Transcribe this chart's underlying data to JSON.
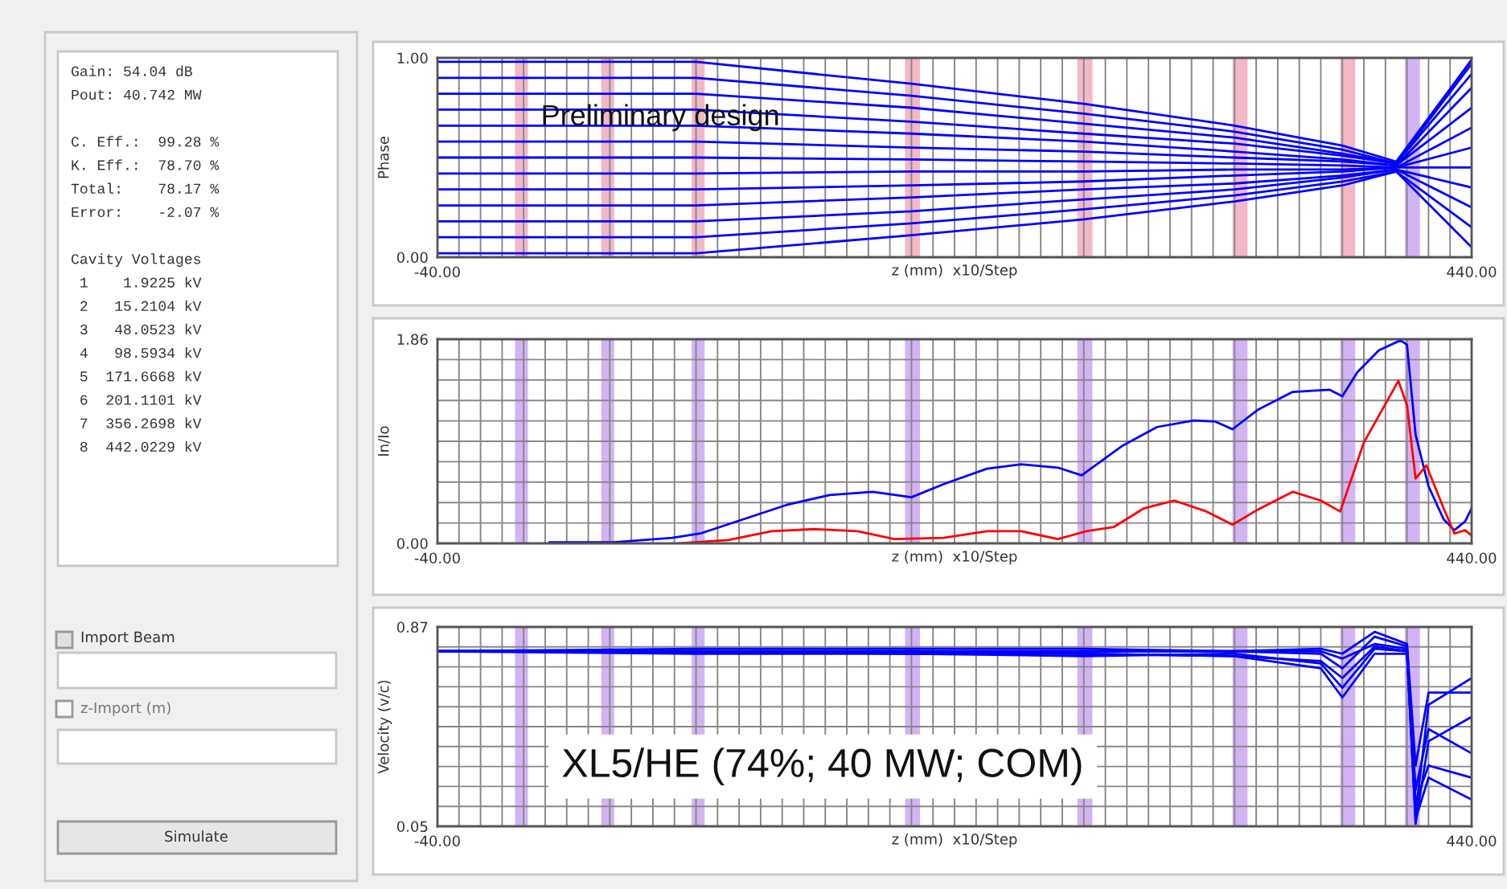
{
  "chart_data": [
    {
      "type": "other",
      "annotations": [
        "Gain: 54.04 dB",
        "Pout: 40.742 MW",
        "C. Eff.:  99.28 %",
        "K. Eff.:  78.70 %",
        "Total:    78.17 %",
        "Error:    -2.07 %",
        "Cavity Voltages",
        " 1    1.9225 kV",
        " 2   15.2104 kV",
        " 3   48.0523 kV",
        " 4   98.5934 kV",
        " 5  171.6668 kV",
        " 6  201.1101 kV",
        " 7  356.2698 kV",
        " 8  442.0229 kV",
        "Import Beam",
        "z-Import (m)",
        "Simulate"
      ]
    },
    {
      "type": "line",
      "ylabel": "Phase",
      "xlabel": "z (mm)  x10/Step",
      "annotations": [
        "Preliminary design"
      ],
      "grid": "x",
      "xlim": [
        -40,
        440
      ],
      "ylim": [
        0,
        1
      ],
      "xticks": [
        {
          "value": -40,
          "label": "-40.00"
        },
        {
          "value": -30,
          "label": null
        },
        {
          "value": -20,
          "label": null
        },
        {
          "value": -10,
          "label": null
        },
        {
          "value": 0,
          "label": null
        },
        {
          "value": 10,
          "label": null
        },
        {
          "value": 20,
          "label": null
        },
        {
          "value": 30,
          "label": null
        },
        {
          "value": 40,
          "label": null
        },
        {
          "value": 50,
          "label": null
        },
        {
          "value": 60,
          "label": null
        },
        {
          "value": 70,
          "label": null
        },
        {
          "value": 80,
          "label": null
        },
        {
          "value": 90,
          "label": null
        },
        {
          "value": 100,
          "label": null
        },
        {
          "value": 110,
          "label": null
        },
        {
          "value": 120,
          "label": null
        },
        {
          "value": 130,
          "label": null
        },
        {
          "value": 140,
          "label": null
        },
        {
          "value": 150,
          "label": null
        },
        {
          "value": 160,
          "label": null
        },
        {
          "value": 170,
          "label": null
        },
        {
          "value": 180,
          "label": null
        },
        {
          "value": 190,
          "label": null
        },
        {
          "value": 200,
          "label": null
        },
        {
          "value": 210,
          "label": null
        },
        {
          "value": 220,
          "label": null
        },
        {
          "value": 230,
          "label": null
        },
        {
          "value": 240,
          "label": null
        },
        {
          "value": 250,
          "label": null
        },
        {
          "value": 260,
          "label": null
        },
        {
          "value": 270,
          "label": null
        },
        {
          "value": 280,
          "label": null
        },
        {
          "value": 290,
          "label": null
        },
        {
          "value": 300,
          "label": null
        },
        {
          "value": 310,
          "label": null
        },
        {
          "value": 320,
          "label": null
        },
        {
          "value": 330,
          "label": null
        },
        {
          "value": 340,
          "label": null
        },
        {
          "value": 350,
          "label": null
        },
        {
          "value": 360,
          "label": null
        },
        {
          "value": 370,
          "label": null
        },
        {
          "value": 380,
          "label": null
        },
        {
          "value": 390,
          "label": null
        },
        {
          "value": 400,
          "label": null
        },
        {
          "value": 410,
          "label": null
        },
        {
          "value": 420,
          "label": null
        },
        {
          "value": 430,
          "label": null
        },
        {
          "value": 440,
          "label": "440.00"
        }
      ],
      "yticks": [
        {
          "value": 0,
          "label": "0.00"
        },
        {
          "value": 1,
          "label": "1.00"
        }
      ],
      "bands": [
        {
          "axis": "x",
          "from": -4,
          "to": 2,
          "color": "#f2b8c6"
        },
        {
          "axis": "x",
          "from": 36,
          "to": 42,
          "color": "#f2b8c6"
        },
        {
          "axis": "x",
          "from": 78,
          "to": 84,
          "color": "#f2b8c6"
        },
        {
          "axis": "x",
          "from": 177,
          "to": 184,
          "color": "#f2b8c6"
        },
        {
          "axis": "x",
          "from": 257,
          "to": 264,
          "color": "#f2b8c6"
        },
        {
          "axis": "x",
          "from": 329,
          "to": 336,
          "color": "#f2b8c6"
        },
        {
          "axis": "x",
          "from": 379,
          "to": 386,
          "color": "#f2b8c6"
        },
        {
          "axis": "x",
          "from": 409,
          "to": 416,
          "color": "#d2b4f5"
        }
      ],
      "x": [
        -40,
        80,
        180,
        260,
        330,
        380,
        405,
        440
      ],
      "series": [
        {
          "color": "#0000ff",
          "values": [
            0.02,
            0.02,
            0.11,
            0.19,
            0.28,
            0.36,
            0.43,
            0.05
          ]
        },
        {
          "color": "#0000ff",
          "values": [
            0.1,
            0.1,
            0.17,
            0.24,
            0.31,
            0.38,
            0.43,
            0.15
          ]
        },
        {
          "color": "#0000ff",
          "values": [
            0.18,
            0.18,
            0.23,
            0.29,
            0.34,
            0.4,
            0.44,
            0.25
          ]
        },
        {
          "color": "#0000ff",
          "values": [
            0.26,
            0.26,
            0.3,
            0.34,
            0.37,
            0.41,
            0.44,
            0.35
          ]
        },
        {
          "color": "#0000ff",
          "values": [
            0.34,
            0.34,
            0.36,
            0.38,
            0.41,
            0.43,
            0.45,
            0.45
          ]
        },
        {
          "color": "#0000ff",
          "values": [
            0.42,
            0.42,
            0.43,
            0.43,
            0.44,
            0.44,
            0.45,
            0.55
          ]
        },
        {
          "color": "#0000ff",
          "values": [
            0.5,
            0.5,
            0.49,
            0.48,
            0.47,
            0.46,
            0.45,
            0.65
          ]
        },
        {
          "color": "#0000ff",
          "values": [
            0.58,
            0.58,
            0.55,
            0.53,
            0.5,
            0.48,
            0.46,
            0.75
          ]
        },
        {
          "color": "#0000ff",
          "values": [
            0.66,
            0.66,
            0.62,
            0.58,
            0.53,
            0.49,
            0.46,
            0.85
          ]
        },
        {
          "color": "#0000ff",
          "values": [
            0.74,
            0.74,
            0.68,
            0.62,
            0.57,
            0.51,
            0.47,
            0.92
          ]
        },
        {
          "color": "#0000ff",
          "values": [
            0.82,
            0.82,
            0.75,
            0.67,
            0.6,
            0.52,
            0.47,
            0.97
          ]
        },
        {
          "color": "#0000ff",
          "values": [
            0.9,
            0.9,
            0.81,
            0.72,
            0.63,
            0.54,
            0.47,
            0.99
          ]
        },
        {
          "color": "#0000ff",
          "values": [
            0.98,
            0.98,
            0.87,
            0.77,
            0.66,
            0.56,
            0.48,
            0.99
          ]
        }
      ]
    },
    {
      "type": "line",
      "ylabel": "In/Io",
      "xlabel": "z (mm)  x10/Step",
      "grid": true,
      "xlim": [
        -40,
        440
      ],
      "ylim": [
        0,
        1.86
      ],
      "xticks": [
        {
          "value": -40,
          "label": "-40.00"
        },
        {
          "value": -30,
          "label": null
        },
        {
          "value": -20,
          "label": null
        },
        {
          "value": -10,
          "label": null
        },
        {
          "value": 0,
          "label": null
        },
        {
          "value": 10,
          "label": null
        },
        {
          "value": 20,
          "label": null
        },
        {
          "value": 30,
          "label": null
        },
        {
          "value": 40,
          "label": null
        },
        {
          "value": 50,
          "label": null
        },
        {
          "value": 60,
          "label": null
        },
        {
          "value": 70,
          "label": null
        },
        {
          "value": 80,
          "label": null
        },
        {
          "value": 90,
          "label": null
        },
        {
          "value": 100,
          "label": null
        },
        {
          "value": 110,
          "label": null
        },
        {
          "value": 120,
          "label": null
        },
        {
          "value": 130,
          "label": null
        },
        {
          "value": 140,
          "label": null
        },
        {
          "value": 150,
          "label": null
        },
        {
          "value": 160,
          "label": null
        },
        {
          "value": 170,
          "label": null
        },
        {
          "value": 180,
          "label": null
        },
        {
          "value": 190,
          "label": null
        },
        {
          "value": 200,
          "label": null
        },
        {
          "value": 210,
          "label": null
        },
        {
          "value": 220,
          "label": null
        },
        {
          "value": 230,
          "label": null
        },
        {
          "value": 240,
          "label": null
        },
        {
          "value": 250,
          "label": null
        },
        {
          "value": 260,
          "label": null
        },
        {
          "value": 270,
          "label": null
        },
        {
          "value": 280,
          "label": null
        },
        {
          "value": 290,
          "label": null
        },
        {
          "value": 300,
          "label": null
        },
        {
          "value": 310,
          "label": null
        },
        {
          "value": 320,
          "label": null
        },
        {
          "value": 330,
          "label": null
        },
        {
          "value": 340,
          "label": null
        },
        {
          "value": 350,
          "label": null
        },
        {
          "value": 360,
          "label": null
        },
        {
          "value": 370,
          "label": null
        },
        {
          "value": 380,
          "label": null
        },
        {
          "value": 390,
          "label": null
        },
        {
          "value": 400,
          "label": null
        },
        {
          "value": 410,
          "label": null
        },
        {
          "value": 420,
          "label": null
        },
        {
          "value": 430,
          "label": null
        },
        {
          "value": 440,
          "label": "440.00"
        }
      ],
      "yticks": [
        {
          "value": 0,
          "label": "0.00"
        },
        {
          "value": 0.186,
          "label": null
        },
        {
          "value": 0.372,
          "label": null
        },
        {
          "value": 0.558,
          "label": null
        },
        {
          "value": 0.744,
          "label": null
        },
        {
          "value": 0.93,
          "label": null
        },
        {
          "value": 1.116,
          "label": null
        },
        {
          "value": 1.302,
          "label": null
        },
        {
          "value": 1.488,
          "label": null
        },
        {
          "value": 1.674,
          "label": null
        },
        {
          "value": 1.86,
          "label": "1.86"
        }
      ],
      "bands": [
        {
          "axis": "x",
          "from": -4,
          "to": 2,
          "color": "#d2b4f5"
        },
        {
          "axis": "x",
          "from": 36,
          "to": 42,
          "color": "#d2b4f5"
        },
        {
          "axis": "x",
          "from": 78,
          "to": 84,
          "color": "#d2b4f5"
        },
        {
          "axis": "x",
          "from": 177,
          "to": 184,
          "color": "#d2b4f5"
        },
        {
          "axis": "x",
          "from": 257,
          "to": 264,
          "color": "#d2b4f5"
        },
        {
          "axis": "x",
          "from": 329,
          "to": 336,
          "color": "#d2b4f5"
        },
        {
          "axis": "x",
          "from": 379,
          "to": 386,
          "color": "#d2b4f5"
        },
        {
          "axis": "x",
          "from": 409,
          "to": 416,
          "color": "#d2b4f5"
        }
      ],
      "series": [
        {
          "color": "#0000ff",
          "x": [
            12,
            42,
            69,
            82,
            102,
            122,
            142,
            162,
            180,
            195,
            215,
            231,
            248,
            259,
            278,
            294,
            311,
            321,
            329,
            341,
            357,
            374,
            380,
            387,
            397,
            407,
            410,
            414,
            420,
            427,
            432,
            437,
            440
          ],
          "values": [
            0.01,
            0.01,
            0.05,
            0.09,
            0.22,
            0.35,
            0.44,
            0.47,
            0.42,
            0.54,
            0.68,
            0.72,
            0.69,
            0.62,
            0.89,
            1.06,
            1.12,
            1.11,
            1.04,
            1.22,
            1.38,
            1.4,
            1.34,
            1.56,
            1.76,
            1.85,
            1.81,
            0.99,
            0.52,
            0.22,
            0.12,
            0.2,
            0.32
          ]
        },
        {
          "color": "#ff0000",
          "x": [
            72,
            95,
            115,
            135,
            155,
            172,
            195,
            215,
            231,
            248,
            261,
            274,
            288,
            302,
            317,
            329,
            341,
            357,
            370,
            379,
            390,
            406,
            410,
            414,
            419,
            427,
            432,
            437,
            440
          ],
          "values": [
            0,
            0.03,
            0.11,
            0.13,
            0.11,
            0.04,
            0.05,
            0.11,
            0.11,
            0.04,
            0.11,
            0.15,
            0.32,
            0.39,
            0.29,
            0.17,
            0.31,
            0.47,
            0.39,
            0.29,
            0.92,
            1.48,
            1.26,
            0.59,
            0.71,
            0.32,
            0.09,
            0.12,
            0.07
          ]
        }
      ]
    },
    {
      "type": "line",
      "ylabel": "Velocity (v/c)",
      "xlabel": "z (mm)  x10/Step",
      "annotations": [
        "XL5/HE (74%; 40 MW; COM)"
      ],
      "grid": true,
      "xlim": [
        -40,
        440
      ],
      "ylim": [
        0.05,
        0.87
      ],
      "xticks": [
        {
          "value": -40,
          "label": "-40.00"
        },
        {
          "value": -30,
          "label": null
        },
        {
          "value": -20,
          "label": null
        },
        {
          "value": -10,
          "label": null
        },
        {
          "value": 0,
          "label": null
        },
        {
          "value": 10,
          "label": null
        },
        {
          "value": 20,
          "label": null
        },
        {
          "value": 30,
          "label": null
        },
        {
          "value": 40,
          "label": null
        },
        {
          "value": 50,
          "label": null
        },
        {
          "value": 60,
          "label": null
        },
        {
          "value": 70,
          "label": null
        },
        {
          "value": 80,
          "label": null
        },
        {
          "value": 90,
          "label": null
        },
        {
          "value": 100,
          "label": null
        },
        {
          "value": 110,
          "label": null
        },
        {
          "value": 120,
          "label": null
        },
        {
          "value": 130,
          "label": null
        },
        {
          "value": 140,
          "label": null
        },
        {
          "value": 150,
          "label": null
        },
        {
          "value": 160,
          "label": null
        },
        {
          "value": 170,
          "label": null
        },
        {
          "value": 180,
          "label": null
        },
        {
          "value": 190,
          "label": null
        },
        {
          "value": 200,
          "label": null
        },
        {
          "value": 210,
          "label": null
        },
        {
          "value": 220,
          "label": null
        },
        {
          "value": 230,
          "label": null
        },
        {
          "value": 240,
          "label": null
        },
        {
          "value": 250,
          "label": null
        },
        {
          "value": 260,
          "label": null
        },
        {
          "value": 270,
          "label": null
        },
        {
          "value": 280,
          "label": null
        },
        {
          "value": 290,
          "label": null
        },
        {
          "value": 300,
          "label": null
        },
        {
          "value": 310,
          "label": null
        },
        {
          "value": 320,
          "label": null
        },
        {
          "value": 330,
          "label": null
        },
        {
          "value": 340,
          "label": null
        },
        {
          "value": 350,
          "label": null
        },
        {
          "value": 360,
          "label": null
        },
        {
          "value": 370,
          "label": null
        },
        {
          "value": 380,
          "label": null
        },
        {
          "value": 390,
          "label": null
        },
        {
          "value": 400,
          "label": null
        },
        {
          "value": 410,
          "label": null
        },
        {
          "value": 420,
          "label": null
        },
        {
          "value": 430,
          "label": null
        },
        {
          "value": 440,
          "label": "440.00"
        }
      ],
      "yticks": [
        {
          "value": 0.05,
          "label": "0.05"
        },
        {
          "value": 0.132,
          "label": null
        },
        {
          "value": 0.214,
          "label": null
        },
        {
          "value": 0.296,
          "label": null
        },
        {
          "value": 0.378,
          "label": null
        },
        {
          "value": 0.46,
          "label": null
        },
        {
          "value": 0.542,
          "label": null
        },
        {
          "value": 0.624,
          "label": null
        },
        {
          "value": 0.706,
          "label": null
        },
        {
          "value": 0.788,
          "label": null
        },
        {
          "value": 0.87,
          "label": "0.87"
        }
      ],
      "bands": [
        {
          "axis": "x",
          "from": -4,
          "to": 2,
          "color": "#d2b4f5"
        },
        {
          "axis": "x",
          "from": 36,
          "to": 42,
          "color": "#d2b4f5"
        },
        {
          "axis": "x",
          "from": 78,
          "to": 84,
          "color": "#d2b4f5"
        },
        {
          "axis": "x",
          "from": 177,
          "to": 184,
          "color": "#d2b4f5"
        },
        {
          "axis": "x",
          "from": 257,
          "to": 264,
          "color": "#d2b4f5"
        },
        {
          "axis": "x",
          "from": 329,
          "to": 336,
          "color": "#d2b4f5"
        },
        {
          "axis": "x",
          "from": 379,
          "to": 386,
          "color": "#d2b4f5"
        },
        {
          "axis": "x",
          "from": 409,
          "to": 416,
          "color": "#d2b4f5"
        }
      ],
      "x": [
        -40,
        80,
        180,
        260,
        330,
        370,
        380,
        395,
        410,
        414,
        420,
        440
      ],
      "series": [
        {
          "color": "#0000ff",
          "values": [
            0.77,
            0.77,
            0.77,
            0.77,
            0.77,
            0.77,
            0.74,
            0.8,
            0.78,
            0.1,
            0.55,
            0.66
          ]
        },
        {
          "color": "#0000ff",
          "values": [
            0.77,
            0.77,
            0.76,
            0.75,
            0.76,
            0.72,
            0.62,
            0.78,
            0.77,
            0.06,
            0.4,
            0.5
          ]
        },
        {
          "color": "#0000ff",
          "values": [
            0.77,
            0.78,
            0.78,
            0.78,
            0.77,
            0.76,
            0.7,
            0.83,
            0.79,
            0.2,
            0.45,
            0.35
          ]
        },
        {
          "color": "#0000ff",
          "values": [
            0.77,
            0.76,
            0.76,
            0.76,
            0.75,
            0.7,
            0.58,
            0.76,
            0.76,
            0.15,
            0.3,
            0.25
          ]
        },
        {
          "color": "#0000ff",
          "values": [
            0.77,
            0.77,
            0.77,
            0.77,
            0.77,
            0.78,
            0.76,
            0.85,
            0.8,
            0.3,
            0.6,
            0.6
          ]
        },
        {
          "color": "#0000ff",
          "values": [
            0.77,
            0.77,
            0.77,
            0.76,
            0.75,
            0.73,
            0.66,
            0.79,
            0.77,
            0.08,
            0.25,
            0.16
          ]
        }
      ]
    }
  ]
}
